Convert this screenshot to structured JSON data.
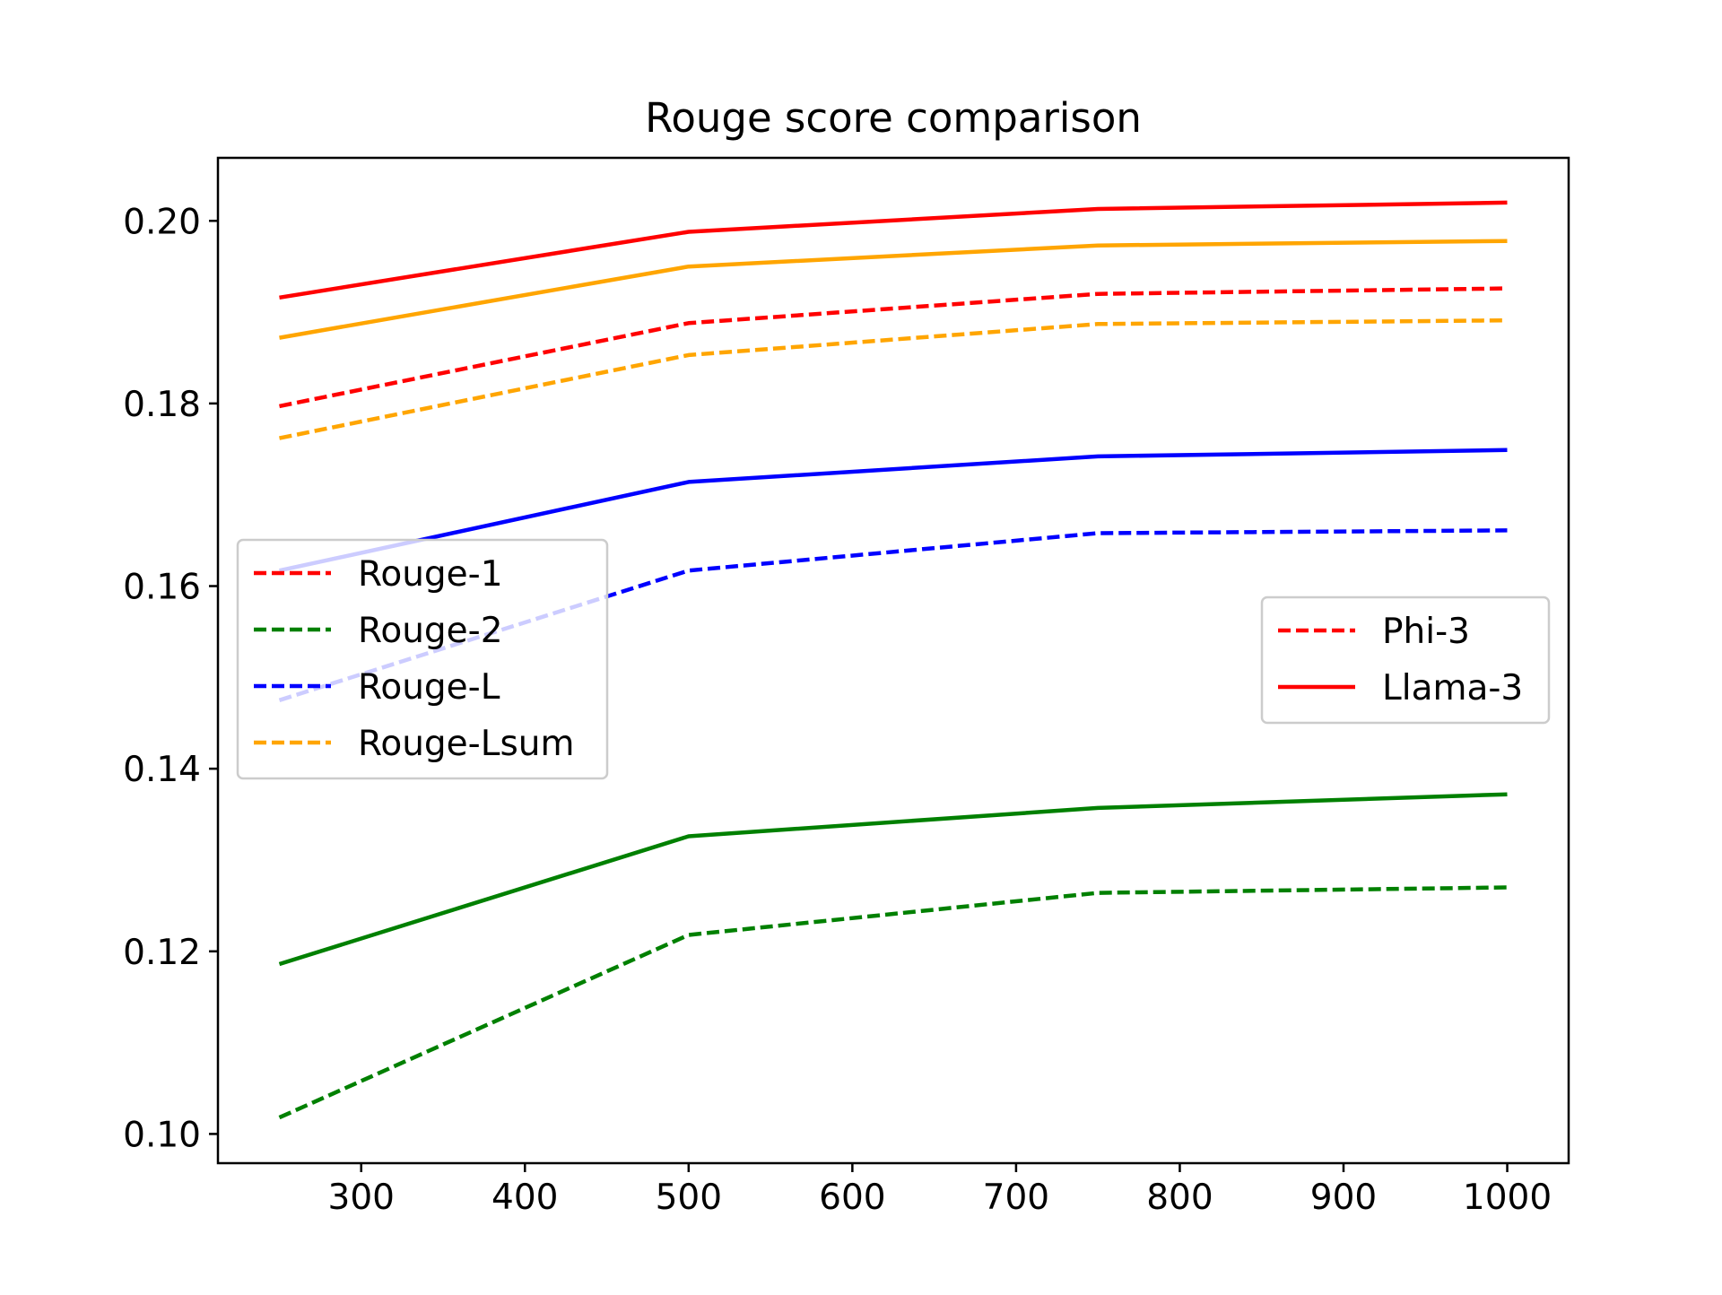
{
  "chart_data": {
    "type": "line",
    "title": "Rouge score comparison",
    "xlabel": "",
    "ylabel": "",
    "xlim": [
      212.5,
      1037.5
    ],
    "ylim": [
      0.0968,
      0.2069
    ],
    "xticks": [
      300,
      400,
      500,
      600,
      700,
      800,
      900,
      1000
    ],
    "xtick_labels": [
      "300",
      "400",
      "500",
      "600",
      "700",
      "800",
      "900",
      "1000"
    ],
    "yticks": [
      0.1,
      0.12,
      0.14,
      0.16,
      0.18,
      0.2
    ],
    "ytick_labels": [
      "0.10",
      "0.12",
      "0.14",
      "0.16",
      "0.18",
      "0.20"
    ],
    "grid": false,
    "x": [
      250,
      500,
      750,
      1000
    ],
    "series": [
      {
        "metric": "Rouge-1",
        "model": "Phi-3",
        "color": "#ff0000",
        "dash": "dashed",
        "values": [
          0.1797,
          0.1888,
          0.192,
          0.1926
        ]
      },
      {
        "metric": "Rouge-1",
        "model": "Llama-3",
        "color": "#ff0000",
        "dash": "solid",
        "values": [
          0.1916,
          0.1988,
          0.2013,
          0.202
        ]
      },
      {
        "metric": "Rouge-2",
        "model": "Phi-3",
        "color": "#008000",
        "dash": "dashed",
        "values": [
          0.1018,
          0.1218,
          0.1264,
          0.127
        ]
      },
      {
        "metric": "Rouge-2",
        "model": "Llama-3",
        "color": "#008000",
        "dash": "solid",
        "values": [
          0.1186,
          0.1326,
          0.1357,
          0.1372
        ]
      },
      {
        "metric": "Rouge-L",
        "model": "Phi-3",
        "color": "#0000ff",
        "dash": "dashed",
        "values": [
          0.1475,
          0.1617,
          0.1658,
          0.1661
        ]
      },
      {
        "metric": "Rouge-L",
        "model": "Llama-3",
        "color": "#0000ff",
        "dash": "solid",
        "values": [
          0.1617,
          0.1714,
          0.1742,
          0.1749
        ]
      },
      {
        "metric": "Rouge-Lsum",
        "model": "Phi-3",
        "color": "#ffa500",
        "dash": "dashed",
        "values": [
          0.1762,
          0.1853,
          0.1887,
          0.1891
        ]
      },
      {
        "metric": "Rouge-Lsum",
        "model": "Llama-3",
        "color": "#ffa500",
        "dash": "solid",
        "values": [
          0.1872,
          0.195,
          0.1973,
          0.1978
        ]
      }
    ],
    "legends": [
      {
        "placement": "center-left",
        "entries": [
          {
            "label": "Rouge-1",
            "color": "#ff0000",
            "dash": "dashed"
          },
          {
            "label": "Rouge-2",
            "color": "#008000",
            "dash": "dashed"
          },
          {
            "label": "Rouge-L",
            "color": "#0000ff",
            "dash": "dashed"
          },
          {
            "label": "Rouge-Lsum",
            "color": "#ffa500",
            "dash": "dashed"
          }
        ]
      },
      {
        "placement": "center-right",
        "entries": [
          {
            "label": "Phi-3",
            "color": "#ff0000",
            "dash": "dashed"
          },
          {
            "label": "Llama-3",
            "color": "#ff0000",
            "dash": "solid"
          }
        ]
      }
    ]
  }
}
